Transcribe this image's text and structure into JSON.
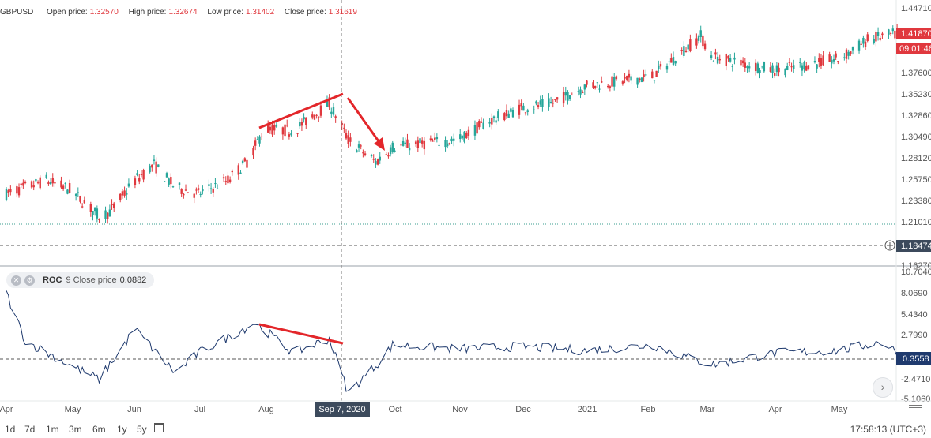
{
  "legend": {
    "symbol": "GBPUSD",
    "open_label": "Open price:",
    "open_value": "1.32570",
    "high_label": "High price:",
    "high_value": "1.32674",
    "low_label": "Low price:",
    "low_value": "1.31402",
    "close_label": "Close price:",
    "close_value": "1.31619"
  },
  "indicator": {
    "name": "ROC",
    "params": "9 Close price",
    "value": "0.0882"
  },
  "price_axis": {
    "ticks": [
      "1.44710",
      "1.41870",
      "1.37600",
      "1.35230",
      "1.32860",
      "1.30490",
      "1.28120",
      "1.25750",
      "1.23380",
      "1.21010",
      "1.18474",
      "1.16270"
    ],
    "last_price": "1.41870",
    "countdown": "09:01:46",
    "marker_price": "1.18474"
  },
  "roc_axis": {
    "ticks": [
      "10.7040",
      "8.0690",
      "5.4340",
      "2.7990",
      "0.3558",
      "-2.4710",
      "-5.1060"
    ],
    "current": "0.3558"
  },
  "time_axis": {
    "labels": [
      "Apr",
      "May",
      "Jun",
      "Jul",
      "Aug",
      "Sep 7, 2020",
      "Oct",
      "Nov",
      "Dec",
      "2021",
      "Feb",
      "Mar",
      "Apr",
      "May"
    ],
    "crosshair_label": "Sep 7, 2020"
  },
  "timeframes": [
    "1d",
    "7d",
    "1m",
    "3m",
    "6m",
    "1y",
    "5y"
  ],
  "clock": "17:58:13 (UTC+3)",
  "colors": {
    "up": "#26a69a",
    "down": "#e0383e",
    "roc_line": "#1f3a6e",
    "annotation": "#e3262a",
    "axis_text": "#555555"
  },
  "chart_data": [
    {
      "type": "candlestick",
      "symbol": "GBPUSD",
      "x_range": [
        "2020-04",
        "2021-05"
      ],
      "ylim": [
        1.1627,
        1.4471
      ],
      "keypoints": [
        {
          "x": "2020-04",
          "y": 1.24
        },
        {
          "x": "2020-04-20",
          "y": 1.255
        },
        {
          "x": "2020-05",
          "y": 1.245
        },
        {
          "x": "2020-05-15",
          "y": 1.215
        },
        {
          "x": "2020-05-20",
          "y": 1.22
        },
        {
          "x": "2020-06",
          "y": 1.255
        },
        {
          "x": "2020-06-10",
          "y": 1.272
        },
        {
          "x": "2020-06-20",
          "y": 1.247
        },
        {
          "x": "2020-07",
          "y": 1.24
        },
        {
          "x": "2020-07-15",
          "y": 1.255
        },
        {
          "x": "2020-07-25",
          "y": 1.278
        },
        {
          "x": "2020-08",
          "y": 1.312
        },
        {
          "x": "2020-08-15",
          "y": 1.31
        },
        {
          "x": "2020-09-01",
          "y": 1.34
        },
        {
          "x": "2020-09-10",
          "y": 1.3
        },
        {
          "x": "2020-09-23",
          "y": 1.275
        },
        {
          "x": "2020-10",
          "y": 1.292
        },
        {
          "x": "2020-11",
          "y": 1.3
        },
        {
          "x": "2020-11-15",
          "y": 1.32
        },
        {
          "x": "2020-12",
          "y": 1.335
        },
        {
          "x": "2020-12-15",
          "y": 1.34
        },
        {
          "x": "2021-01",
          "y": 1.36
        },
        {
          "x": "2021-02",
          "y": 1.37
        },
        {
          "x": "2021-02-24",
          "y": 1.415
        },
        {
          "x": "2021-03",
          "y": 1.392
        },
        {
          "x": "2021-04",
          "y": 1.377
        },
        {
          "x": "2021-05",
          "y": 1.39
        },
        {
          "x": "2021-05-15",
          "y": 1.412
        },
        {
          "x": "2021-05-30",
          "y": 1.418
        }
      ],
      "horizontal_lines": [
        1.2101,
        1.18474
      ],
      "annotations": [
        {
          "type": "trend_line",
          "from": {
            "x": "2020-07-28",
            "y": 1.3
          },
          "to": {
            "x": "2020-09-01",
            "y": 1.3523
          }
        },
        {
          "type": "arrow",
          "from": {
            "x": "2020-09-02",
            "y": 1.345
          },
          "to": {
            "x": "2020-09-25",
            "y": 1.298
          }
        }
      ]
    },
    {
      "type": "line",
      "name": "ROC",
      "ylim": [
        -5.106,
        10.704
      ],
      "keypoints": [
        {
          "x": "2020-04",
          "y": 8.0
        },
        {
          "x": "2020-04-10",
          "y": 2.0
        },
        {
          "x": "2020-05",
          "y": -1.0
        },
        {
          "x": "2020-05-15",
          "y": -2.8
        },
        {
          "x": "2020-06",
          "y": 3.5
        },
        {
          "x": "2020-06-20",
          "y": -2.0
        },
        {
          "x": "2020-07",
          "y": 0.5
        },
        {
          "x": "2020-07-28",
          "y": 4.3
        },
        {
          "x": "2020-08-15",
          "y": 0.5
        },
        {
          "x": "2020-09-01",
          "y": 2.3
        },
        {
          "x": "2020-09-10",
          "y": -4.5
        },
        {
          "x": "2020-09-25",
          "y": -0.5
        },
        {
          "x": "2020-10",
          "y": 1.5
        },
        {
          "x": "2020-11",
          "y": 1.0
        },
        {
          "x": "2020-12",
          "y": 1.3
        },
        {
          "x": "2021-01",
          "y": 0.8
        },
        {
          "x": "2021-02",
          "y": 1.5
        },
        {
          "x": "2021-03",
          "y": -1.0
        },
        {
          "x": "2021-04",
          "y": 0.5
        },
        {
          "x": "2021-05",
          "y": 0.8
        },
        {
          "x": "2021-05-20",
          "y": 1.9
        },
        {
          "x": "2021-05-30",
          "y": 0.35
        }
      ],
      "reference_line": 0.3558,
      "annotations": [
        {
          "type": "trend_line",
          "from": {
            "x": "2020-07-28",
            "y": 4.3
          },
          "to": {
            "x": "2020-09-01",
            "y": 2.3
          }
        }
      ]
    }
  ]
}
